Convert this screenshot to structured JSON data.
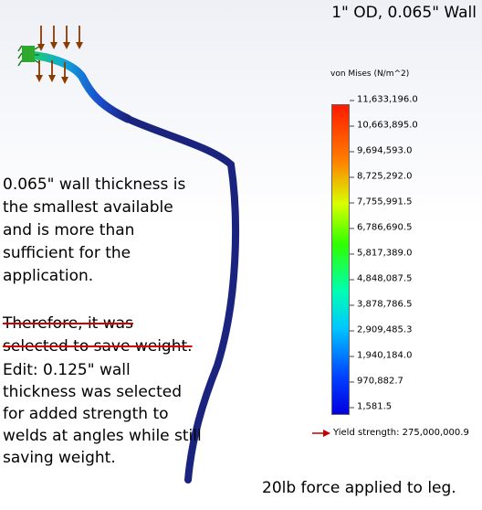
{
  "title": "1\" OD, 0.065\" Wall",
  "legend": {
    "title": "von Mises (N/m^2)",
    "ticks": [
      "11,633,196.0",
      "10,663,895.0",
      "9,694,593.0",
      "8,725,292.0",
      "7,755,991.5",
      "6,786,690.5",
      "5,817,389.0",
      "4,848,087.5",
      "3,878,786.5",
      "2,909,485.3",
      "1,940,184.0",
      "970,882.7",
      "1,581.5"
    ],
    "yield_label": "Yield strength: 275,000,000.9"
  },
  "notes": {
    "paragraph1": "0.065\" wall thickness is the smallest available and is more than sufficient for the application.",
    "struck_line1": "Therefore, it was",
    "struck_line2": "selected to save weight.",
    "edit": "Edit: 0.125\" wall thickness was selected for added strength to welds at angles while still saving weight."
  },
  "force_note": "20lb force applied to leg.",
  "colors": {
    "tube": "#1a237e",
    "strike": "#d40000",
    "load_arrow": "#8b3a00",
    "yield_arrow": "#c00000"
  }
}
